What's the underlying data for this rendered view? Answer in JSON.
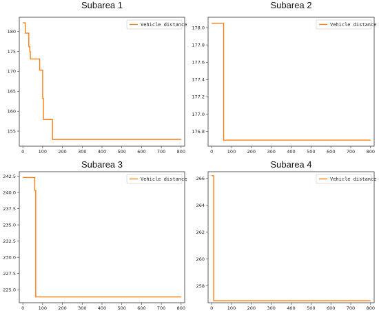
{
  "chart_data": [
    {
      "type": "line",
      "title": "Subarea 1",
      "xlabel": "",
      "ylabel": "",
      "xlim": [
        -18,
        818
      ],
      "ylim": [
        151.2,
        183.6
      ],
      "xticks": [
        0,
        100,
        200,
        300,
        400,
        500,
        600,
        700,
        800
      ],
      "xtick_labels": [
        "0",
        "100",
        "200",
        "300",
        "400",
        "500",
        "600",
        "700",
        "800"
      ],
      "yticks": [
        155,
        160,
        165,
        170,
        175,
        180
      ],
      "ytick_labels": [
        "155",
        "160",
        "165",
        "170",
        "175",
        "180"
      ],
      "legend": "top-right",
      "grid": false,
      "series": [
        {
          "name": "Vehicle distance",
          "color": "#ff7f0e",
          "x": [
            0,
            12,
            12,
            30,
            30,
            35,
            35,
            38,
            38,
            85,
            85,
            100,
            100,
            104,
            104,
            110,
            110,
            150,
            150,
            800
          ],
          "y": [
            182.2,
            182.2,
            179.6,
            179.6,
            176.2,
            176.2,
            175.0,
            175.0,
            173.1,
            173.1,
            170.3,
            170.3,
            163.2,
            163.2,
            157.9,
            157.9,
            157.9,
            157.9,
            152.9,
            152.9
          ]
        }
      ]
    },
    {
      "type": "line",
      "title": "Subarea 2",
      "xlabel": "",
      "ylabel": "",
      "xlim": [
        -18,
        818
      ],
      "ylim": [
        176.63,
        178.12
      ],
      "xticks": [
        0,
        100,
        200,
        300,
        400,
        500,
        600,
        700,
        800
      ],
      "xtick_labels": [
        "0",
        "100",
        "200",
        "300",
        "400",
        "500",
        "600",
        "700",
        "800"
      ],
      "yticks": [
        176.8,
        177.0,
        177.2,
        177.4,
        177.6,
        177.8,
        178.0
      ],
      "ytick_labels": [
        "176.8",
        "177.0",
        "177.2",
        "177.4",
        "177.6",
        "177.8",
        "178.0"
      ],
      "legend": "top-right",
      "grid": false,
      "series": [
        {
          "name": "Vehicle distance",
          "color": "#ff7f0e",
          "x": [
            0,
            60,
            60,
            800
          ],
          "y": [
            178.05,
            178.05,
            176.7,
            176.7
          ]
        }
      ]
    },
    {
      "type": "line",
      "title": "Subarea 3",
      "xlabel": "",
      "ylabel": "",
      "xlim": [
        -18,
        818
      ],
      "ylim": [
        223.0,
        243.2
      ],
      "xticks": [
        0,
        100,
        200,
        300,
        400,
        500,
        600,
        700,
        800
      ],
      "xtick_labels": [
        "0",
        "100",
        "200",
        "300",
        "400",
        "500",
        "600",
        "700",
        "800"
      ],
      "yticks": [
        225.0,
        227.5,
        230.0,
        232.5,
        235.0,
        237.5,
        240.0,
        242.5
      ],
      "ytick_labels": [
        "225.0",
        "227.5",
        "230.0",
        "232.5",
        "235.0",
        "237.5",
        "240.0",
        "242.5"
      ],
      "legend": "top-right",
      "grid": false,
      "series": [
        {
          "name": "Vehicle distance",
          "color": "#ff7f0e",
          "x": [
            0,
            60,
            60,
            65,
            65,
            800
          ],
          "y": [
            242.3,
            242.3,
            240.3,
            240.3,
            223.9,
            223.9
          ]
        }
      ]
    },
    {
      "type": "line",
      "title": "Subarea 4",
      "xlabel": "",
      "ylabel": "",
      "xlim": [
        -18,
        818
      ],
      "ylim": [
        256.75,
        266.5
      ],
      "xticks": [
        0,
        100,
        200,
        300,
        400,
        500,
        600,
        700,
        800
      ],
      "xtick_labels": [
        "0",
        "100",
        "200",
        "300",
        "400",
        "500",
        "600",
        "700",
        "800"
      ],
      "yticks": [
        258,
        260,
        262,
        264,
        266
      ],
      "ytick_labels": [
        "258",
        "260",
        "262",
        "264",
        "266"
      ],
      "legend": "top-right",
      "grid": false,
      "series": [
        {
          "name": "Vehicle distance",
          "color": "#ff7f0e",
          "x": [
            0,
            10,
            10,
            800
          ],
          "y": [
            266.2,
            266.2,
            256.9,
            256.9
          ]
        }
      ]
    }
  ]
}
